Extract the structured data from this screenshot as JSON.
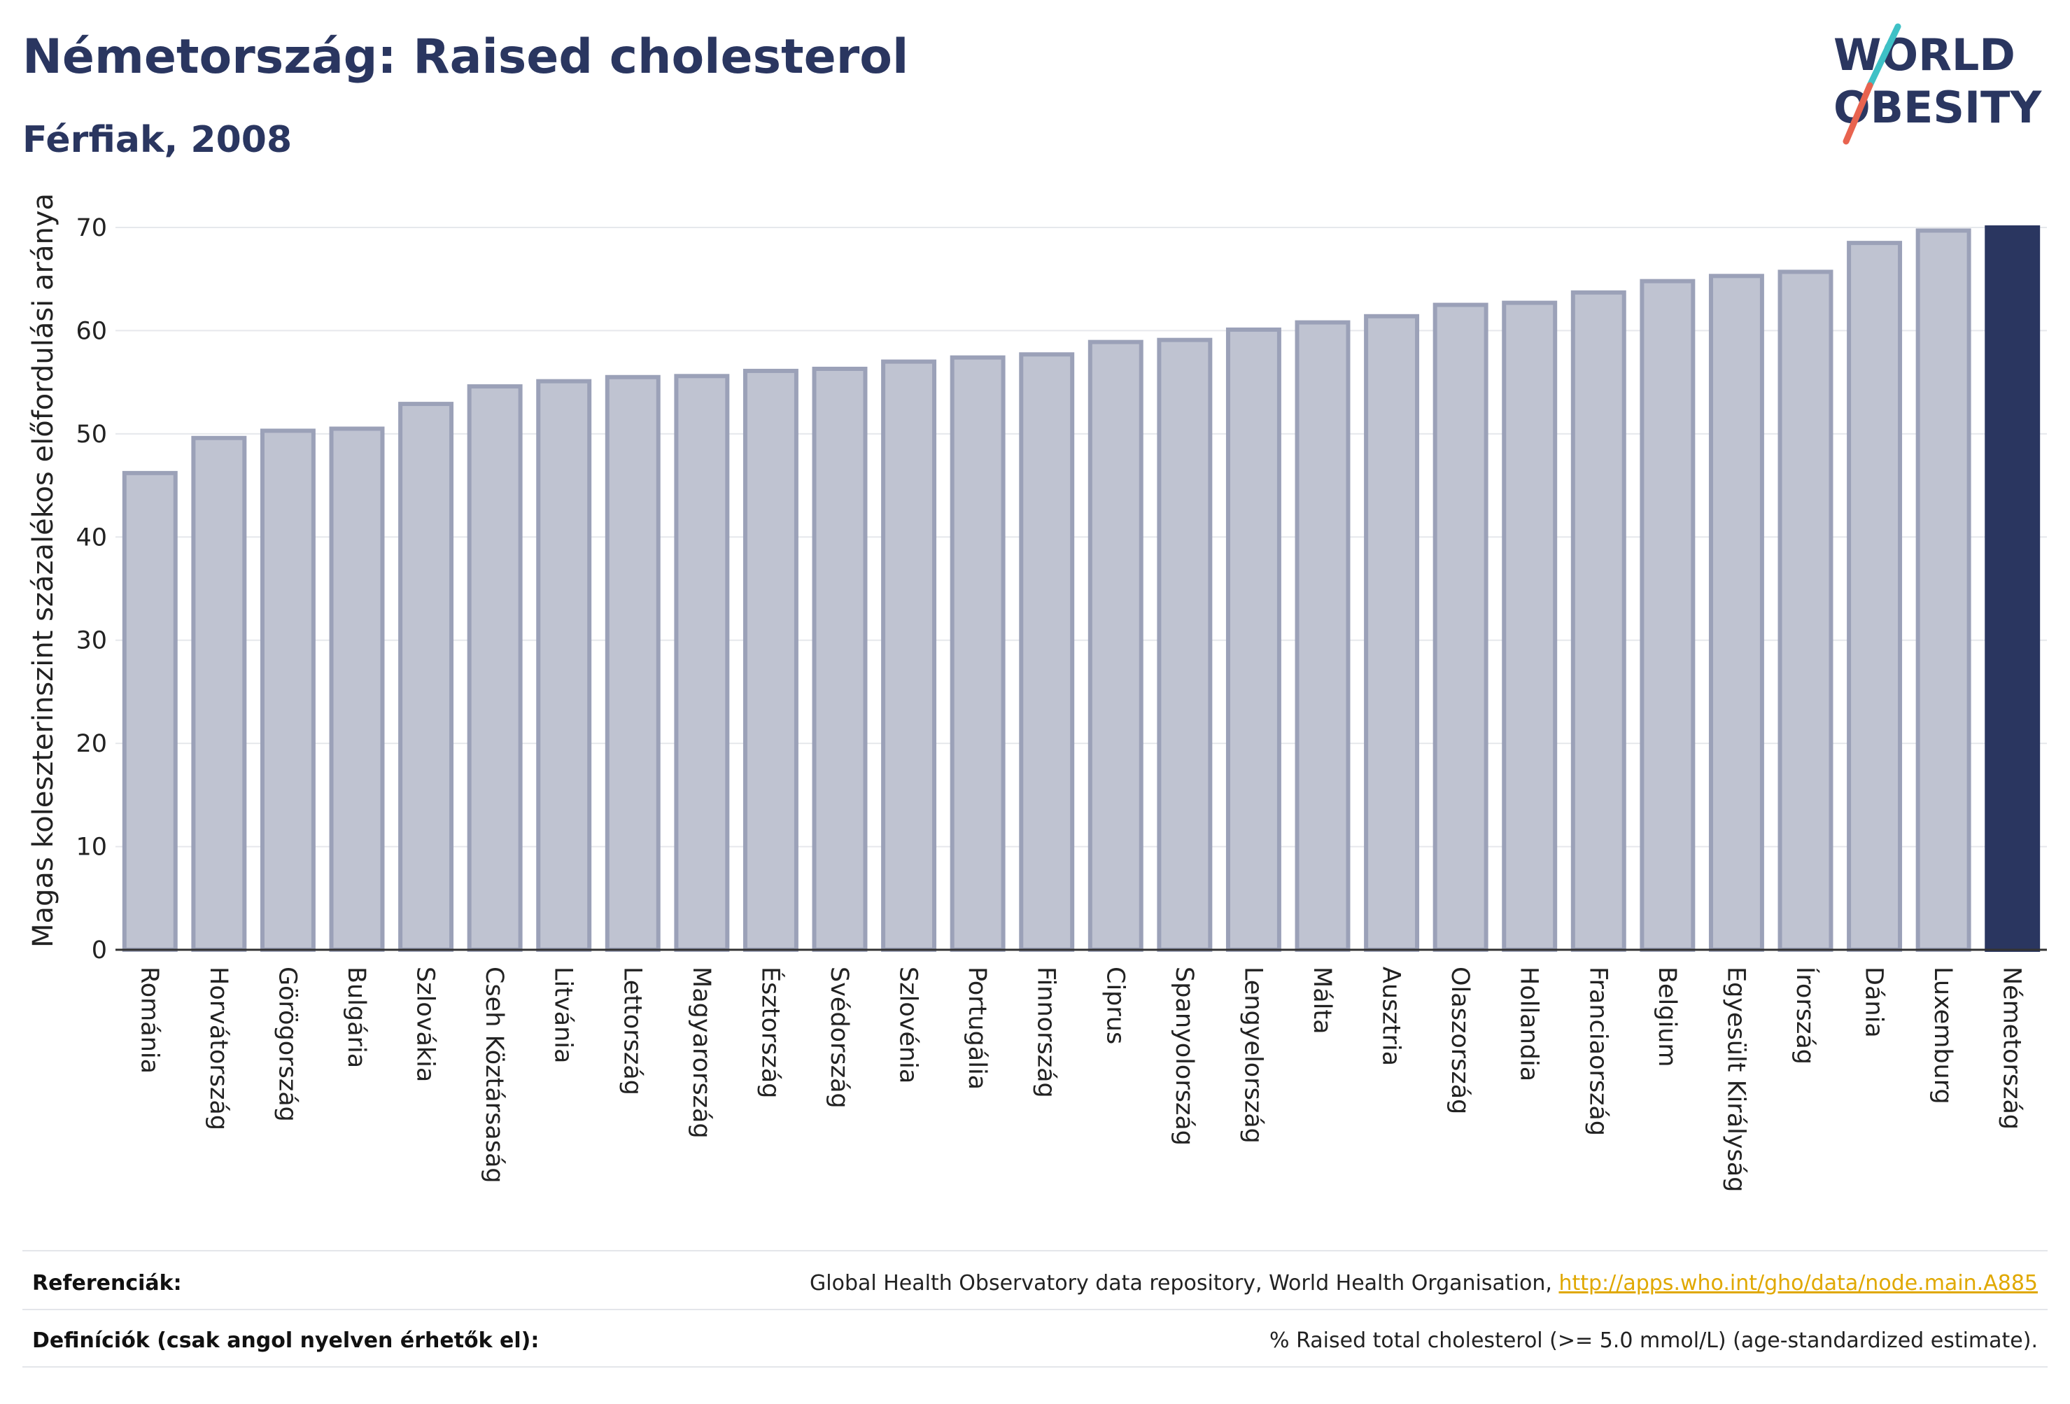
{
  "header": {
    "title": "Németország: Raised cholesterol",
    "subtitle": "Férfiak, 2008",
    "logo_line1": "WORLD",
    "logo_line2": "OBESITY"
  },
  "colors": {
    "highlight": "#2a3660",
    "bar": "#bfc3d1",
    "bar_stroke": "#9ba1b8",
    "text": "#2a3660",
    "link": "#e0a800",
    "logo_teal": "#3ec1c6",
    "logo_red": "#e8634f"
  },
  "chart_data": {
    "type": "bar",
    "ylabel": "Magas koleszterinszint százalékos előfordulási aránya",
    "xlabel": "",
    "ylim": [
      0,
      70
    ],
    "yticks": [
      0,
      10,
      20,
      30,
      40,
      50,
      60,
      70
    ],
    "grid": true,
    "highlight": "Németország",
    "categories": [
      "Románia",
      "Horvátország",
      "Görögország",
      "Bulgária",
      "Szlovákia",
      "Cseh Köztársaság",
      "Litvánia",
      "Lettország",
      "Magyarország",
      "Észtország",
      "Svédország",
      "Szlovénia",
      "Portugália",
      "Finnország",
      "Ciprus",
      "Spanyolország",
      "Lengyelország",
      "Málta",
      "Ausztria",
      "Olaszország",
      "Hollandia",
      "Franciaország",
      "Belgium",
      "Egyesült Királyság",
      "Írország",
      "Dánia",
      "Luxemburg",
      "Németország"
    ],
    "values": [
      46.2,
      49.6,
      50.3,
      50.5,
      52.9,
      54.6,
      55.1,
      55.5,
      55.6,
      56.1,
      56.3,
      57.0,
      57.4,
      57.7,
      58.9,
      59.1,
      60.1,
      60.8,
      61.4,
      62.5,
      62.7,
      63.7,
      64.8,
      65.3,
      65.7,
      68.5,
      69.7,
      70.0
    ]
  },
  "footer": {
    "references_label": "Referenciák:",
    "references_text": "Global Health Observatory data repository, World Health Organisation, ",
    "references_link": "http://apps.who.int/gho/data/node.main.A885",
    "definitions_label": "Definíciók (csak angol nyelven érhetők el):",
    "definitions_text": "% Raised total cholesterol (>= 5.0 mmol/L) (age-standardized estimate)."
  }
}
